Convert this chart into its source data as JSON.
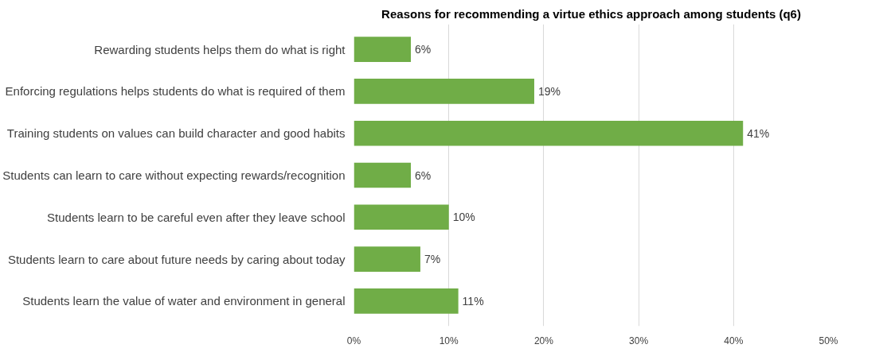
{
  "chart_data": {
    "type": "bar",
    "orientation": "horizontal",
    "title": "Reasons for recommending a virtue ethics approach among students (q6)",
    "categories": [
      "Rewarding students helps them do what is right",
      "Enforcing regulations helps students do what is required of them",
      "Training students on values can build character and good habits",
      "Students can learn to care without expecting rewards/recognition",
      "Students learn to be careful even after they leave school",
      "Students learn to care about future needs by caring about today",
      "Students learn the value of water and environment in general"
    ],
    "values": [
      6,
      19,
      41,
      6,
      10,
      7,
      11
    ],
    "value_labels": [
      "6%",
      "19%",
      "41%",
      "6%",
      "10%",
      "7%",
      "11%"
    ],
    "color": "#70ad47",
    "xlim": [
      0,
      50
    ],
    "xticks": [
      {
        "value": 0,
        "label": "0%"
      },
      {
        "value": 10,
        "label": "10%"
      },
      {
        "value": 20,
        "label": "20%"
      },
      {
        "value": 30,
        "label": "30%"
      },
      {
        "value": 40,
        "label": "40%"
      },
      {
        "value": 50,
        "label": "50%"
      }
    ],
    "grid": "x"
  }
}
